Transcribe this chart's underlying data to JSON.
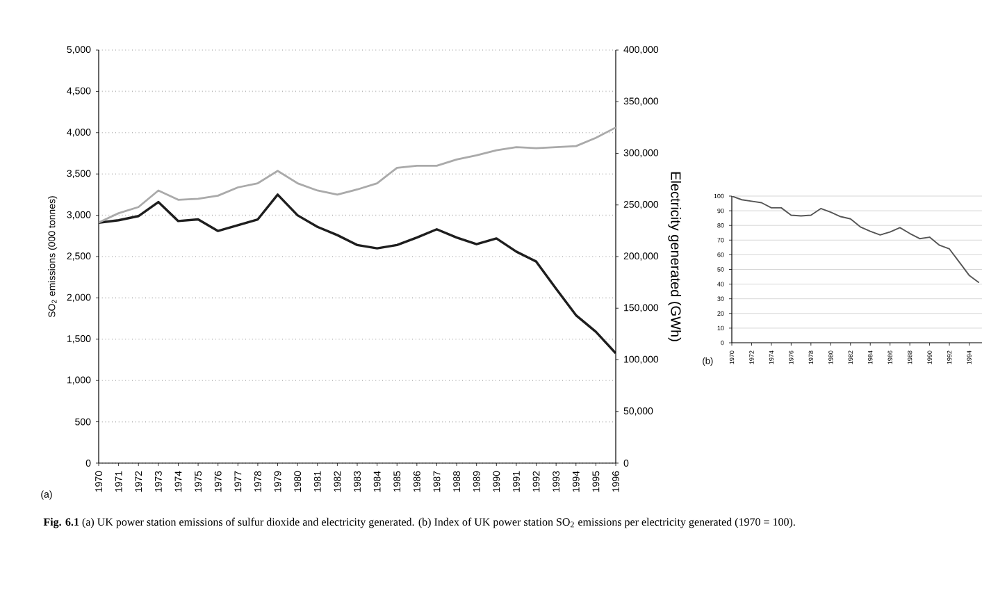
{
  "chart_data": [
    {
      "type": "line",
      "x": [
        1970,
        1971,
        1972,
        1973,
        1974,
        1975,
        1976,
        1977,
        1978,
        1979,
        1980,
        1981,
        1982,
        1983,
        1984,
        1985,
        1986,
        1987,
        1988,
        1989,
        1990,
        1991,
        1992,
        1993,
        1994,
        1995,
        1996
      ],
      "series": [
        {
          "color": "#aaaaaa",
          "axis": "y2",
          "values": [
            233000,
            242000,
            248000,
            264000,
            255000,
            256000,
            259000,
            267000,
            271000,
            283000,
            271000,
            264000,
            260000,
            265000,
            271000,
            286000,
            288000,
            288000,
            294000,
            298000,
            303000,
            306000,
            305000,
            306000,
            307000,
            315000,
            325000
          ]
        },
        {
          "color": "#1e1e1e",
          "values": [
            2910,
            2940,
            2990,
            3160,
            2930,
            2950,
            2810,
            2880,
            2950,
            3250,
            3000,
            2860,
            2760,
            2640,
            2600,
            2640,
            2730,
            2830,
            2730,
            2650,
            2720,
            2560,
            2440,
            2110,
            1790,
            1590,
            1330
          ]
        }
      ],
      "xlim": [
        1970,
        1996
      ],
      "xticks": [
        1970,
        1971,
        1972,
        1973,
        1974,
        1975,
        1976,
        1977,
        1978,
        1979,
        1980,
        1981,
        1982,
        1983,
        1984,
        1985,
        1986,
        1987,
        1988,
        1989,
        1990,
        1991,
        1992,
        1993,
        1994,
        1995,
        1996
      ],
      "ylim": [
        0,
        5000
      ],
      "yticks": [
        0,
        500,
        {
          "value": 1000,
          "label": "1,000"
        },
        {
          "value": 1500,
          "label": "1,500"
        },
        {
          "value": 2000,
          "label": "2,000"
        },
        {
          "value": 2500,
          "label": "2,500"
        },
        {
          "value": 3000,
          "label": "3,000"
        },
        {
          "value": 3500,
          "label": "3,500"
        },
        {
          "value": 4000,
          "label": "4,000"
        },
        {
          "value": 4500,
          "label": "4,500"
        },
        {
          "value": 5000,
          "label": "5,000"
        }
      ],
      "y2lim": [
        0,
        400000
      ],
      "y2ticks": [
        0,
        {
          "value": 50000,
          "label": "50,000"
        },
        {
          "value": 100000,
          "label": "100,000"
        },
        {
          "value": 150000,
          "label": "150,000"
        },
        {
          "value": 200000,
          "label": "200,000"
        },
        {
          "value": 250000,
          "label": "250,000"
        },
        {
          "value": 300000,
          "label": "300,000"
        },
        {
          "value": 350000,
          "label": "350,000"
        },
        {
          "value": 400000,
          "label": "400,000"
        }
      ],
      "ylabel": "SO$_{2}$ emissions (000 tonnes)",
      "y2label": "Electricity generated (GWh)",
      "grid": "y",
      "annotations": [
        "(a)",
        "**Fig. 6.1**    (a) UK power station emissions of sulfur dioxide and electricity generated. (b) Index of UK power station SO$_{2}$ emissions per electricity generated (1970 = 100)."
      ]
    },
    {
      "type": "line",
      "x": [
        1970,
        1971,
        1972,
        1973,
        1974,
        1975,
        1976,
        1977,
        1978,
        1979,
        1980,
        1981,
        1982,
        1983,
        1984,
        1985,
        1986,
        1987,
        1988,
        1989,
        1990,
        1991,
        1992,
        1993,
        1994,
        1995
      ],
      "series": [
        {
          "color": "#555555",
          "values": [
            100,
            97.5,
            96.5,
            95.5,
            92,
            92,
            87,
            86.5,
            87,
            91.5,
            89,
            86,
            84.5,
            79,
            76,
            73.5,
            75.5,
            78.5,
            74.5,
            71,
            72,
            66.5,
            64,
            55,
            46,
            41
          ]
        }
      ],
      "xlim": [
        1970,
        1995.3
      ],
      "xticks": [
        1970,
        1972,
        1974,
        1976,
        1978,
        1980,
        1982,
        1984,
        1986,
        1988,
        1990,
        1992,
        1994
      ],
      "ylim": [
        0,
        100
      ],
      "yticks": [
        0,
        10,
        20,
        30,
        40,
        50,
        60,
        70,
        80,
        90,
        100
      ],
      "grid": "y",
      "annotations": [
        "(b)"
      ]
    }
  ]
}
